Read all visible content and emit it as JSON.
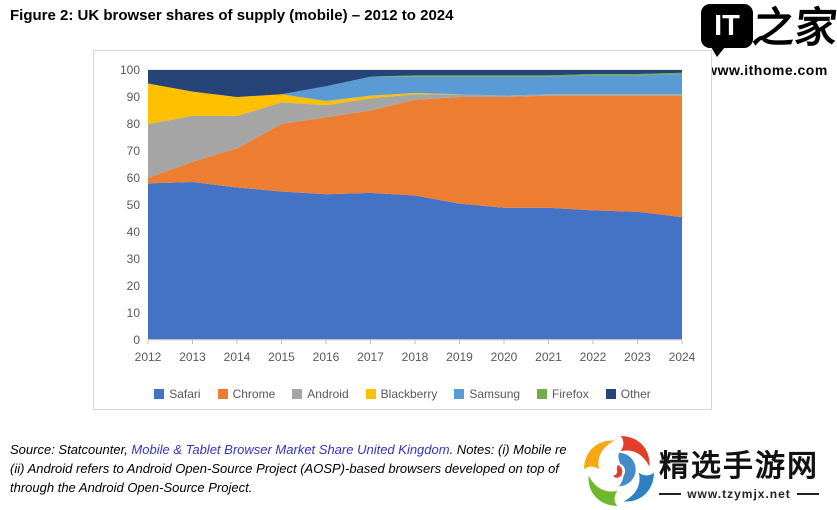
{
  "title": "Figure 2: UK browser shares of supply (mobile) – 2012 to 2024",
  "watermark_top": {
    "logo_text": "IT",
    "logo_suffix": "之家",
    "url": "www.ithome.com"
  },
  "watermark_bottom": {
    "site_name": "精选手游网",
    "url": "www.tzymjx.net"
  },
  "source_note": {
    "line1_prefix": "Source: Statcounter, ",
    "line1_link": "Mobile & Tablet Browser Market Share United Kingdom",
    "line1_suffix": ". Notes: (i) Mobile re",
    "line2": "(ii) Android refers to Android Open-Source Project (AOSP)-based browsers developed on top of",
    "line3": "through the Android Open-Source Project.",
    "link_color": "#3333CC"
  },
  "chart_data": {
    "type": "area",
    "stacked": true,
    "title": "UK browser shares of supply (mobile) – 2012 to 2024",
    "xlabel": "",
    "ylabel": "",
    "ylim": [
      0,
      100
    ],
    "ytick_interval": 10,
    "grid": true,
    "legend_position": "bottom",
    "axis_label_color": "#595959",
    "gridline_color": "#d9d9d9",
    "axis_line_color": "#bfbfbf",
    "categories": [
      "2012",
      "2013",
      "2014",
      "2015",
      "2016",
      "2017",
      "2018",
      "2019",
      "2020",
      "2021",
      "2022",
      "2023",
      "2024"
    ],
    "series": [
      {
        "name": "Safari",
        "color": "#4472C4",
        "values": [
          58,
          58.5,
          56.5,
          55,
          54,
          54.5,
          53.5,
          50.5,
          49,
          49,
          48,
          47.5,
          45.5
        ]
      },
      {
        "name": "Chrome",
        "color": "#ED7D31",
        "values": [
          2,
          7.5,
          14.5,
          25,
          28.5,
          30.5,
          35.5,
          39.5,
          41,
          41.5,
          42.5,
          43,
          45
        ]
      },
      {
        "name": "Android",
        "color": "#A5A5A5",
        "values": [
          20,
          17,
          12,
          8,
          4.5,
          4.5,
          2,
          1,
          0.5,
          0.5,
          0.5,
          0.5,
          0.5
        ]
      },
      {
        "name": "Blackberry",
        "color": "#FFC000",
        "values": [
          15,
          9,
          7,
          3,
          1.5,
          1,
          0.5,
          0,
          0,
          0,
          0,
          0,
          0
        ]
      },
      {
        "name": "Samsung",
        "color": "#5B9BD5",
        "values": [
          0,
          0,
          0,
          0,
          5.5,
          7,
          6,
          6.5,
          7,
          6.5,
          7,
          7,
          7.5
        ]
      },
      {
        "name": "Firefox",
        "color": "#70AD47",
        "values": [
          0,
          0,
          0,
          0,
          0,
          0,
          0.5,
          0.5,
          0.5,
          0.5,
          0.5,
          0.5,
          0.5
        ]
      },
      {
        "name": "Other",
        "color": "#264478",
        "values": [
          5,
          8,
          10,
          9,
          6,
          2.5,
          2,
          2,
          2,
          2,
          1.5,
          1.5,
          1
        ]
      }
    ]
  }
}
